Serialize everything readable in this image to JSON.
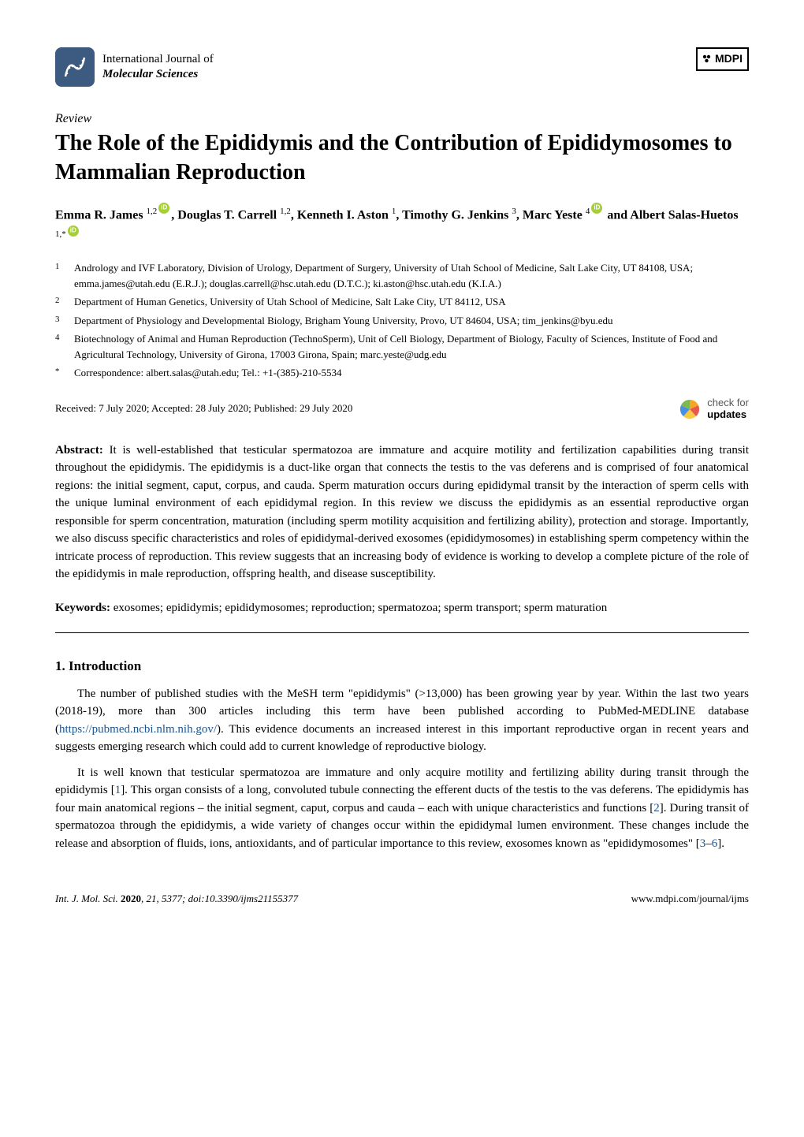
{
  "journal": {
    "line1": "International Journal of",
    "line2": "Molecular Sciences"
  },
  "publisher": "MDPI",
  "article_type": "Review",
  "title": "The Role of the Epididymis and the Contribution of Epididymosomes to Mammalian Reproduction",
  "authors": {
    "list": [
      {
        "name": "Emma R. James",
        "sup": "1,2",
        "orcid": true
      },
      {
        "name": "Douglas T. Carrell",
        "sup": "1,2",
        "orcid": false
      },
      {
        "name": "Kenneth I. Aston",
        "sup": "1",
        "orcid": false
      },
      {
        "name": "Timothy G. Jenkins",
        "sup": "3",
        "orcid": false
      },
      {
        "name": "Marc Yeste",
        "sup": "4",
        "orcid": true
      },
      {
        "name": "Albert Salas-Huetos",
        "sup": "1,*",
        "orcid": true
      }
    ]
  },
  "affiliations": [
    {
      "num": "1",
      "text": "Andrology and IVF Laboratory, Division of Urology, Department of Surgery, University of Utah School of Medicine, Salt Lake City, UT 84108, USA; emma.james@utah.edu (E.R.J.); douglas.carrell@hsc.utah.edu (D.T.C.); ki.aston@hsc.utah.edu (K.I.A.)"
    },
    {
      "num": "2",
      "text": "Department of Human Genetics, University of Utah School of Medicine, Salt Lake City, UT 84112, USA"
    },
    {
      "num": "3",
      "text": "Department of Physiology and Developmental Biology, Brigham Young University, Provo, UT 84604, USA; tim_jenkins@byu.edu"
    },
    {
      "num": "4",
      "text": "Biotechnology of Animal and Human Reproduction (TechnoSperm), Unit of Cell Biology, Department of Biology, Faculty of Sciences, Institute of Food and Agricultural Technology, University of Girona, 17003 Girona, Spain; marc.yeste@udg.edu"
    },
    {
      "num": "*",
      "text": "Correspondence: albert.salas@utah.edu; Tel.: +1-(385)-210-5534"
    }
  ],
  "dates": "Received: 7 July 2020; Accepted: 28 July 2020; Published: 29 July 2020",
  "check_updates": {
    "line1": "check for",
    "line2": "updates"
  },
  "abstract": {
    "label": "Abstract:",
    "text": "It is well-established that testicular spermatozoa are immature and acquire motility and fertilization capabilities during transit throughout the epididymis. The epididymis is a duct-like organ that connects the testis to the vas deferens and is comprised of four anatomical regions: the initial segment, caput, corpus, and cauda. Sperm maturation occurs during epididymal transit by the interaction of sperm cells with the unique luminal environment of each epididymal region. In this review we discuss the epididymis as an essential reproductive organ responsible for sperm concentration, maturation (including sperm motility acquisition and fertilizing ability), protection and storage. Importantly, we also discuss specific characteristics and roles of epididymal-derived exosomes (epididymosomes) in establishing sperm competency within the intricate process of reproduction. This review suggests that an increasing body of evidence is working to develop a complete picture of the role of the epididymis in male reproduction, offspring health, and disease susceptibility."
  },
  "keywords": {
    "label": "Keywords:",
    "text": "exosomes; epididymis; epididymosomes; reproduction; spermatozoa; sperm transport; sperm maturation"
  },
  "section1": {
    "heading": "1. Introduction",
    "p1_a": "The number of published studies with the MeSH term \"epididymis\" (>13,000) has been growing year by year. Within the last two years (2018-19), more than 300 articles including this term have been published according to PubMed-MEDLINE database (",
    "p1_url": "https://pubmed.ncbi.nlm.nih.gov/",
    "p1_b": "). This evidence documents an increased interest in this important reproductive organ in recent years and suggests emerging research which could add to current knowledge of reproductive biology.",
    "p2_a": "It is well known that testicular spermatozoa are immature and only acquire motility and fertilizing ability during transit through the epididymis [",
    "p2_ref1": "1",
    "p2_b": "]. This organ consists of a long, convoluted tubule connecting the efferent ducts of the testis to the vas deferens. The epididymis has four main anatomical regions – the initial segment, caput, corpus and cauda – each with unique characteristics and functions [",
    "p2_ref2": "2",
    "p2_c": "]. During transit of spermatozoa through the epididymis, a wide variety of changes occur within the epididymal lumen environment. These changes include the release and absorption of fluids, ions, antioxidants, and of particular importance to this review, exosomes known as \"epididymosomes\" [",
    "p2_ref3": "3",
    "p2_ref3_dash": "–",
    "p2_ref4": "6",
    "p2_d": "]."
  },
  "footer": {
    "left_a": "Int. J. Mol. Sci. ",
    "left_b": "2020",
    "left_c": ", 21, 5377; doi:10.3390/ijms21155377",
    "right": "www.mdpi.com/journal/ijms"
  },
  "colors": {
    "journal_icon_bg": "#3d5a80",
    "orcid_bg": "#a6ce39",
    "ref_link": "#1a5490",
    "crossmark_orange": "#f5a623",
    "crossmark_blue": "#4a90e2"
  }
}
